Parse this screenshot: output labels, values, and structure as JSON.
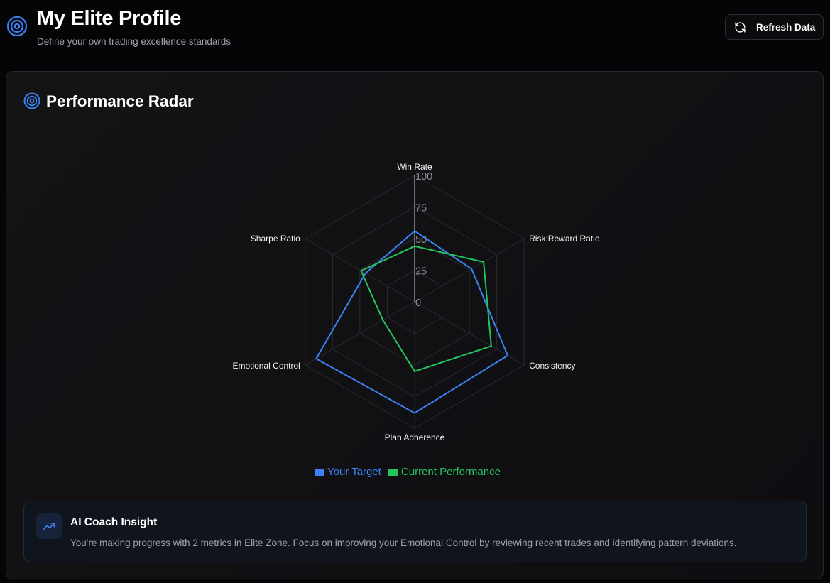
{
  "header": {
    "title": "My Elite Profile",
    "subtitle": "Define your own trading excellence standards",
    "refresh_label": "Refresh Data",
    "icon": "target-icon"
  },
  "card": {
    "title": "Performance Radar",
    "icon": "target-icon"
  },
  "chart_data": {
    "type": "radar",
    "axes": [
      "Win Rate",
      "Risk:Reward Ratio",
      "Consistency",
      "Plan Adherence",
      "Emotional Control",
      "Sharpe Ratio"
    ],
    "ticks": [
      "0",
      "25",
      "50",
      "75",
      "100"
    ],
    "rlim": [
      0,
      100
    ],
    "series": [
      {
        "name": "Your Target",
        "values": [
          56,
          52,
          85,
          88,
          90,
          45
        ],
        "color": "#3b82f6"
      },
      {
        "name": "Current Performance",
        "values": [
          44,
          63,
          70,
          55,
          29,
          49
        ],
        "color": "#22c55e"
      }
    ],
    "legend_position": "bottom",
    "grid": true
  },
  "insight": {
    "title": "AI Coach Insight",
    "text": "You're making progress with 2 metrics in Elite Zone. Focus on improving your Emotional Control by reviewing recent trades and identifying pattern deviations.",
    "icon": "trending-up-icon"
  },
  "colors": {
    "accent": "#3b82f6",
    "success": "#22c55e",
    "background": "#050507"
  }
}
